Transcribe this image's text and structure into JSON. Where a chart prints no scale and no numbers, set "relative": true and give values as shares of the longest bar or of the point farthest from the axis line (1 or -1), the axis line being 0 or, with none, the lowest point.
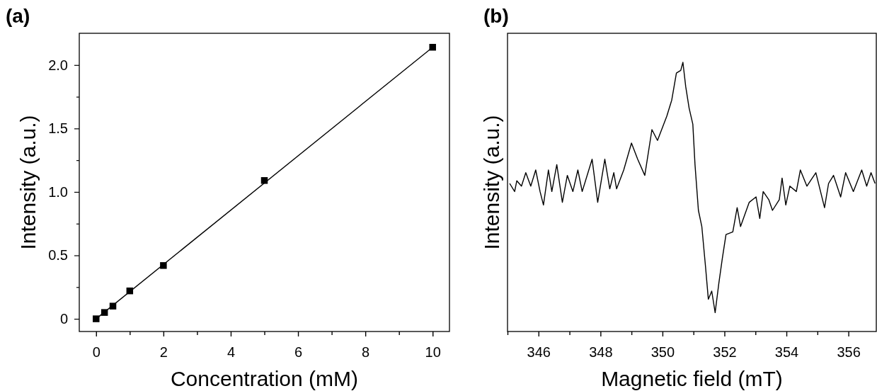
{
  "chart_data": [
    {
      "type": "scatter",
      "title": "(a)",
      "xlabel": "Concentration (mM)",
      "ylabel": "Intensity (a.u.)",
      "xlim": [
        -0.5,
        10.5
      ],
      "ylim": [
        -0.1,
        2.25
      ],
      "xticks": [
        0,
        {
          "value": 1,
          "label": null
        },
        2,
        {
          "value": 3,
          "label": null
        },
        4,
        {
          "value": 5,
          "label": null
        },
        6,
        {
          "value": 7,
          "label": null
        },
        8,
        {
          "value": 9,
          "label": null
        },
        10
      ],
      "yticks": [
        {
          "value": 0,
          "label": "0"
        },
        {
          "value": 0.25,
          "label": null
        },
        0.5,
        {
          "value": 0.75,
          "label": null
        },
        {
          "value": 1,
          "label": "1.0"
        },
        {
          "value": 1.25,
          "label": null
        },
        1.5,
        {
          "value": 1.75,
          "label": null
        },
        {
          "value": 2,
          "label": "2.0"
        }
      ],
      "series": [
        {
          "marker": "square",
          "color": "#000000",
          "x": [
            0,
            0.25,
            0.5,
            1,
            2,
            5,
            10
          ],
          "values": [
            0,
            0.05,
            0.1,
            0.22,
            0.42,
            1.09,
            2.14
          ]
        },
        {
          "type": "line",
          "color": "#000000",
          "x": [
            0,
            10
          ],
          "values": [
            0,
            2.14
          ]
        }
      ]
    },
    {
      "type": "line",
      "title": "(b)",
      "xlabel": "Magnetic field (mT)",
      "ylabel": "Intensity (a.u.)",
      "relative": true,
      "xlim": [
        345,
        356.9
      ],
      "xticks": [
        {
          "value": 345,
          "label": null
        },
        346,
        {
          "value": 347,
          "label": null
        },
        348,
        {
          "value": 349,
          "label": null
        },
        350,
        {
          "value": 351,
          "label": null
        },
        352,
        {
          "value": 353,
          "label": null
        },
        354,
        {
          "value": 355,
          "label": null
        },
        356
      ],
      "series": [
        {
          "color": "#000000",
          "x": [
            345.07,
            345.23,
            345.3,
            345.45,
            345.59,
            345.75,
            345.91,
            346.05,
            346.16,
            346.32,
            346.43,
            346.59,
            346.77,
            346.93,
            347.11,
            347.27,
            347.41,
            347.73,
            347.91,
            348.14,
            348.3,
            348.43,
            348.52,
            348.75,
            349.0,
            349.2,
            349.43,
            349.66,
            349.84,
            350.14,
            350.3,
            350.45,
            350.59,
            350.66,
            350.75,
            350.86,
            350.98,
            351.05,
            351.16,
            351.27,
            351.39,
            351.48,
            351.59,
            351.7,
            351.82,
            351.93,
            352.05,
            352.27,
            352.41,
            352.52,
            352.8,
            353.02,
            353.14,
            353.25,
            353.43,
            353.55,
            353.77,
            353.86,
            353.98,
            354.11,
            354.32,
            354.45,
            354.66,
            354.95,
            355.23,
            355.36,
            355.52,
            355.75,
            355.91,
            356.16,
            356.43,
            356.59,
            356.73,
            356.86
          ],
          "values": [
            0.55,
            0.52,
            0.56,
            0.54,
            0.59,
            0.54,
            0.6,
            0.52,
            0.47,
            0.6,
            0.52,
            0.62,
            0.48,
            0.58,
            0.52,
            0.6,
            0.52,
            0.64,
            0.48,
            0.64,
            0.53,
            0.59,
            0.53,
            0.6,
            0.7,
            0.64,
            0.58,
            0.75,
            0.71,
            0.8,
            0.86,
            0.96,
            0.97,
            1,
            0.91,
            0.83,
            0.77,
            0.62,
            0.45,
            0.39,
            0.24,
            0.12,
            0.15,
            0.07,
            0.18,
            0.27,
            0.36,
            0.37,
            0.46,
            0.39,
            0.48,
            0.5,
            0.42,
            0.52,
            0.49,
            0.45,
            0.49,
            0.57,
            0.47,
            0.54,
            0.52,
            0.6,
            0.54,
            0.59,
            0.46,
            0.55,
            0.58,
            0.5,
            0.59,
            0.52,
            0.6,
            0.54,
            0.59,
            0.55
          ]
        }
      ]
    }
  ]
}
